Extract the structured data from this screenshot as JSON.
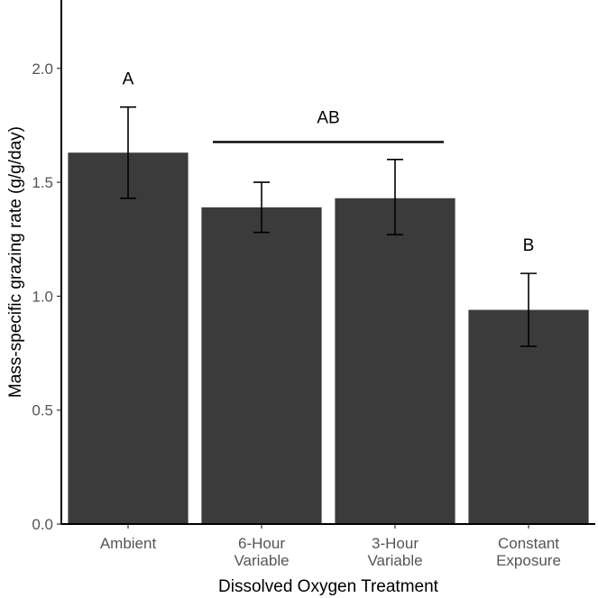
{
  "chart_data": {
    "type": "bar",
    "categories": [
      [
        "Ambient"
      ],
      [
        "6-Hour",
        "Variable"
      ],
      [
        "3-Hour",
        "Variable"
      ],
      [
        "Constant",
        "Exposure"
      ]
    ],
    "values": [
      1.63,
      1.39,
      1.43,
      0.94
    ],
    "error_low": [
      1.43,
      1.28,
      1.27,
      0.78
    ],
    "error_high": [
      1.83,
      1.5,
      1.6,
      1.1
    ],
    "ylim": [
      0,
      2.3
    ],
    "yticks": [
      0.0,
      0.5,
      1.0,
      1.5,
      2.0
    ],
    "ytick_labels": [
      "0.0",
      "0.5",
      "1.0",
      "1.5",
      "2.0"
    ],
    "xlabel": "Dissolved Oxygen Treatment",
    "ylabel": "Mass-specific grazing rate (g/g/day)",
    "grid": false,
    "bar_color": "#3b3b3b",
    "significance": [
      {
        "label": "A",
        "from": 0,
        "to": 0,
        "y": 1.93,
        "bracket": false
      },
      {
        "label": "AB",
        "from": 1,
        "to": 2,
        "y": 1.76,
        "bracket": true
      },
      {
        "label": "B",
        "from": 3,
        "to": 3,
        "y": 1.2,
        "bracket": false
      }
    ]
  }
}
